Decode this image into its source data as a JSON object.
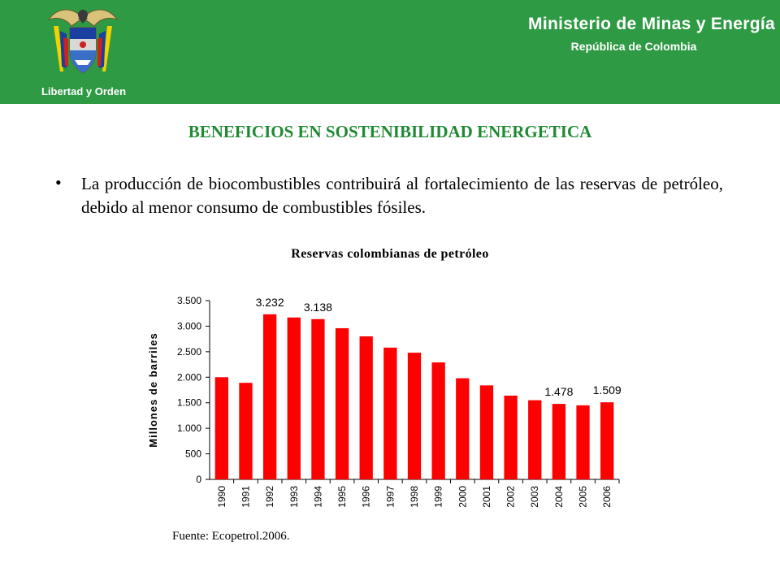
{
  "header": {
    "ministry": "Ministerio de Minas y Energía",
    "republic": "República de Colombia",
    "motto": "Libertad y Orden",
    "crest_icon": "colombia-coat-of-arms-icon",
    "background_color": "#2e9a44"
  },
  "slide": {
    "title": "BENEFICIOS EN SOSTENIBILIDAD ENERGETICA",
    "bullet": "La producción de biocombustibles contribuirá al fortalecimiento de las reservas de petróleo, debido al menor consumo de combustibles fósiles.",
    "source": "Fuente: Ecopetrol.2006."
  },
  "chart_data": {
    "type": "bar",
    "title": "Reservas colombianas de petróleo",
    "ylabel": "Millones de barriles",
    "xlabel": "",
    "categories": [
      "1990",
      "1991",
      "1992",
      "1993",
      "1994",
      "1995",
      "1996",
      "1997",
      "1998",
      "1999",
      "2000",
      "2001",
      "2002",
      "2003",
      "2004",
      "2005",
      "2006"
    ],
    "values": [
      2000,
      1890,
      3232,
      3170,
      3138,
      2960,
      2800,
      2580,
      2480,
      2290,
      1980,
      1840,
      1640,
      1550,
      1478,
      1450,
      1509
    ],
    "data_labels": [
      {
        "index": 2,
        "text": "3.232"
      },
      {
        "index": 4,
        "text": "3.138"
      },
      {
        "index": 14,
        "text": "1.478"
      },
      {
        "index": 16,
        "text": "1.509"
      }
    ],
    "y_ticks": [
      0,
      500,
      1000,
      1500,
      2000,
      2500,
      3000,
      3500
    ],
    "y_tick_labels": [
      "0",
      "500",
      "1.000",
      "1.500",
      "2.000",
      "2.500",
      "3.000",
      "3.500"
    ],
    "ylim": [
      0,
      3500
    ],
    "grid": false,
    "bar_color": "#ff0000"
  }
}
